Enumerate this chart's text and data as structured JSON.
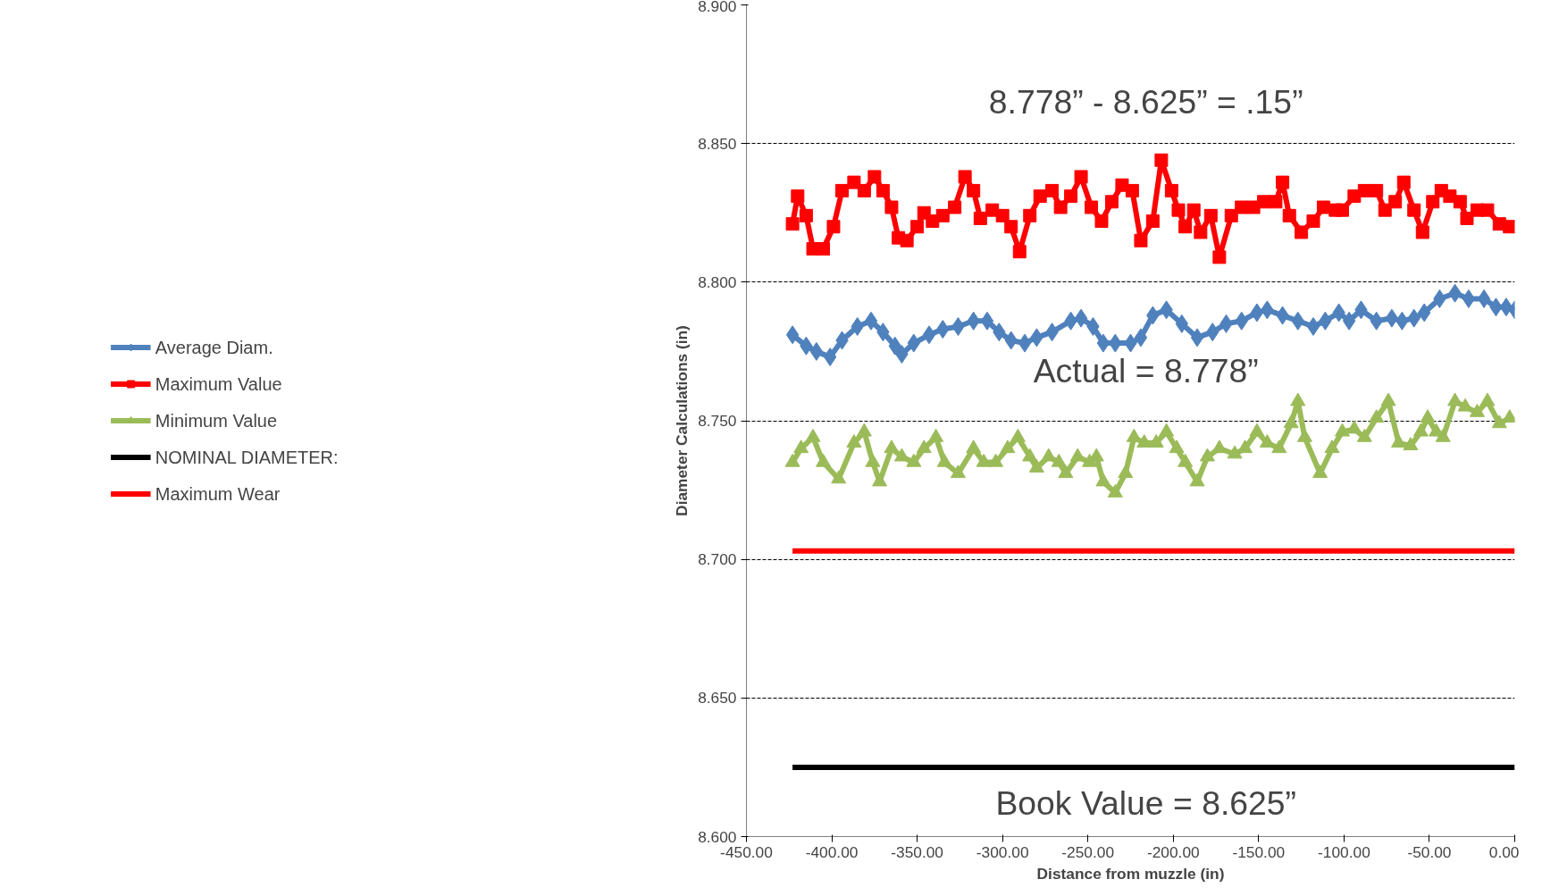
{
  "chart_data": {
    "type": "line",
    "xlabel": "Distance from muzzle (in)",
    "ylabel": "Diameter Calculations (in)",
    "xlim": [
      -450,
      0
    ],
    "ylim": [
      8.6,
      8.9
    ],
    "xticks": [
      {
        "value": -450,
        "label": "-450.00"
      },
      {
        "value": -400,
        "label": "-400.00"
      },
      {
        "value": -350,
        "label": "-350.00"
      },
      {
        "value": -300,
        "label": "-300.00"
      },
      {
        "value": -250,
        "label": "-250.00"
      },
      {
        "value": -200,
        "label": "-200.00"
      },
      {
        "value": -150,
        "label": "-150.00"
      },
      {
        "value": -100,
        "label": "-100.00"
      },
      {
        "value": -50,
        "label": "-50.00"
      },
      {
        "value": 0,
        "label": "0.00"
      }
    ],
    "yticks": [
      {
        "value": 8.6,
        "label": "8.600"
      },
      {
        "value": 8.65,
        "label": "8.650"
      },
      {
        "value": 8.7,
        "label": "8.700"
      },
      {
        "value": 8.75,
        "label": "8.750"
      },
      {
        "value": 8.8,
        "label": "8.800"
      },
      {
        "value": 8.85,
        "label": "8.850"
      },
      {
        "value": 8.9,
        "label": "8.900"
      }
    ],
    "grid": "y",
    "legend": "left",
    "line_style": "solid",
    "series": [
      {
        "name": "Average Diam.",
        "color": "#4f81bd",
        "marker": "diamond",
        "x": [
          -423,
          -415,
          -409,
          -401,
          -394,
          -385,
          -377,
          -370,
          -363,
          -359,
          -352,
          -343,
          -335,
          -326,
          -317,
          -309,
          -302,
          -295,
          -287,
          -280,
          -271,
          -260,
          -254,
          -247,
          -241,
          -234,
          -225,
          -219,
          -212,
          -204,
          -195,
          -186,
          -177,
          -169,
          -160,
          -151,
          -145,
          -136,
          -127,
          -118,
          -111,
          -103,
          -97,
          -90,
          -81,
          -72,
          -66,
          -59,
          -53,
          -44,
          -35,
          -27,
          -18,
          -11,
          -5,
          0
        ],
        "values": [
          8.781,
          8.777,
          8.775,
          8.773,
          8.779,
          8.784,
          8.786,
          8.782,
          8.777,
          8.774,
          8.778,
          8.781,
          8.783,
          8.784,
          8.786,
          8.786,
          8.782,
          8.779,
          8.778,
          8.78,
          8.782,
          8.786,
          8.787,
          8.784,
          8.778,
          8.778,
          8.778,
          8.78,
          8.788,
          8.79,
          8.785,
          8.78,
          8.782,
          8.785,
          8.786,
          8.789,
          8.79,
          8.788,
          8.786,
          8.784,
          8.786,
          8.789,
          8.786,
          8.79,
          8.786,
          8.787,
          8.786,
          8.787,
          8.789,
          8.794,
          8.796,
          8.794,
          8.794,
          8.791,
          8.791,
          8.79
        ]
      },
      {
        "name": "Maximum Value",
        "color": "#ff0000",
        "marker": "square",
        "x": [
          -423,
          -420,
          -415,
          -411,
          -405,
          -399,
          -394,
          -387,
          -381,
          -375,
          -370,
          -365,
          -361,
          -356,
          -350,
          -346,
          -341,
          -335,
          -328,
          -322,
          -317,
          -313,
          -306,
          -300,
          -295,
          -290,
          -284,
          -278,
          -271,
          -266,
          -260,
          -254,
          -248,
          -242,
          -236,
          -230,
          -224,
          -219,
          -212,
          -207,
          -201,
          -197,
          -193,
          -188,
          -184,
          -178,
          -173,
          -166,
          -160,
          -153,
          -147,
          -140,
          -136,
          -132,
          -125,
          -118,
          -112,
          -105,
          -101,
          -94,
          -88,
          -81,
          -76,
          -70,
          -65,
          -59,
          -54,
          -48,
          -43,
          -38,
          -32,
          -28,
          -22,
          -16,
          -9,
          -3
        ],
        "values": [
          8.821,
          8.831,
          8.824,
          8.812,
          8.812,
          8.82,
          8.833,
          8.836,
          8.833,
          8.838,
          8.833,
          8.827,
          8.816,
          8.815,
          8.82,
          8.825,
          8.822,
          8.824,
          8.827,
          8.838,
          8.833,
          8.823,
          8.826,
          8.824,
          8.82,
          8.811,
          8.824,
          8.831,
          8.833,
          8.827,
          8.831,
          8.838,
          8.827,
          8.822,
          8.829,
          8.835,
          8.833,
          8.815,
          8.822,
          8.844,
          8.833,
          8.826,
          8.82,
          8.826,
          8.818,
          8.824,
          8.809,
          8.824,
          8.827,
          8.827,
          8.829,
          8.829,
          8.836,
          8.824,
          8.818,
          8.822,
          8.827,
          8.826,
          8.826,
          8.831,
          8.833,
          8.833,
          8.826,
          8.829,
          8.836,
          8.826,
          8.818,
          8.829,
          8.833,
          8.831,
          8.829,
          8.823,
          8.826,
          8.826,
          8.821,
          8.82
        ]
      },
      {
        "name": "Minimum Value",
        "color": "#9bbb59",
        "marker": "triangle",
        "x": [
          -423,
          -418,
          -411,
          -405,
          -396,
          -387,
          -381,
          -376,
          -372,
          -365,
          -359,
          -352,
          -346,
          -339,
          -334,
          -326,
          -317,
          -311,
          -304,
          -297,
          -291,
          -284,
          -280,
          -273,
          -267,
          -263,
          -256,
          -249,
          -245,
          -241,
          -234,
          -228,
          -223,
          -217,
          -210,
          -204,
          -198,
          -193,
          -186,
          -180,
          -173,
          -164,
          -158,
          -151,
          -145,
          -138,
          -131,
          -127,
          -123,
          -114,
          -107,
          -101,
          -94,
          -88,
          -81,
          -74,
          -68,
          -61,
          -55,
          -51,
          -46,
          -42,
          -35,
          -29,
          -22,
          -16,
          -9,
          -3
        ],
        "values": [
          8.735,
          8.74,
          8.744,
          8.735,
          8.729,
          8.742,
          8.746,
          8.735,
          8.728,
          8.74,
          8.737,
          8.735,
          8.74,
          8.744,
          8.735,
          8.731,
          8.74,
          8.735,
          8.735,
          8.74,
          8.744,
          8.737,
          8.733,
          8.737,
          8.735,
          8.731,
          8.737,
          8.735,
          8.737,
          8.728,
          8.724,
          8.731,
          8.744,
          8.742,
          8.742,
          8.746,
          8.74,
          8.735,
          8.728,
          8.737,
          8.74,
          8.738,
          8.74,
          8.746,
          8.742,
          8.74,
          8.749,
          8.757,
          8.744,
          8.731,
          8.74,
          8.746,
          8.747,
          8.744,
          8.751,
          8.757,
          8.742,
          8.741,
          8.746,
          8.751,
          8.746,
          8.744,
          8.757,
          8.755,
          8.753,
          8.757,
          8.749,
          8.751
        ]
      },
      {
        "name": "NOMINAL DIAMETER:",
        "color": "#000000",
        "marker": "none",
        "x": [
          -423,
          0
        ],
        "values": [
          8.625,
          8.625
        ]
      },
      {
        "name": "Maximum Wear",
        "color": "#ff0000",
        "marker": "none",
        "x": [
          -423,
          0
        ],
        "values": [
          8.703,
          8.703
        ]
      }
    ],
    "annotations": [
      "8.778” - 8.625” = .15”",
      "Actual = 8.778”",
      "Book Value = 8.625”"
    ]
  }
}
